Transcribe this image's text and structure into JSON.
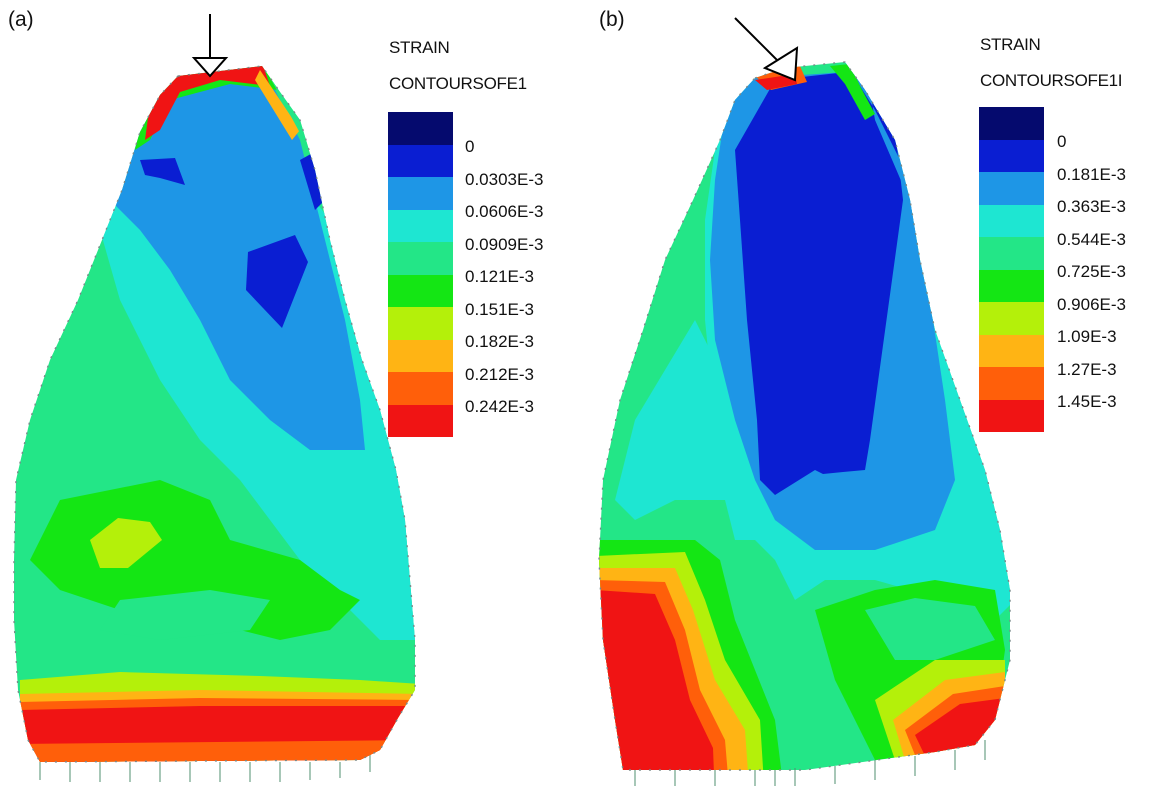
{
  "panels": [
    {
      "label": "(a)",
      "legend_title_line1": "STRAIN",
      "legend_title_line2": "CONTOURSOFE1",
      "legend_entries": [
        "0",
        "0.0303E-3",
        "0.0606E-3",
        "0.0909E-3",
        "0.121E-3",
        "0.151E-3",
        "0.182E-3",
        "0.212E-3",
        "0.242E-3"
      ]
    },
    {
      "label": "(b)",
      "legend_title_line1": "STRAIN",
      "legend_title_line2": "CONTOURSOFE1I",
      "legend_entries": [
        "0",
        "0.181E-3",
        "0.363E-3",
        "0.544E-3",
        "0.725E-3",
        "0.906E-3",
        "1.09E-3",
        "1.27E-3",
        "1.45E-3"
      ]
    }
  ],
  "legend_colors": [
    "#050a6e",
    "#0a1ed2",
    "#1e96e6",
    "#1ee6d2",
    "#23e687",
    "#14e614",
    "#b4f00a",
    "#ffb414",
    "#ff5f0a",
    "#f01414"
  ],
  "arrow_icon": "arrow-load-icon"
}
